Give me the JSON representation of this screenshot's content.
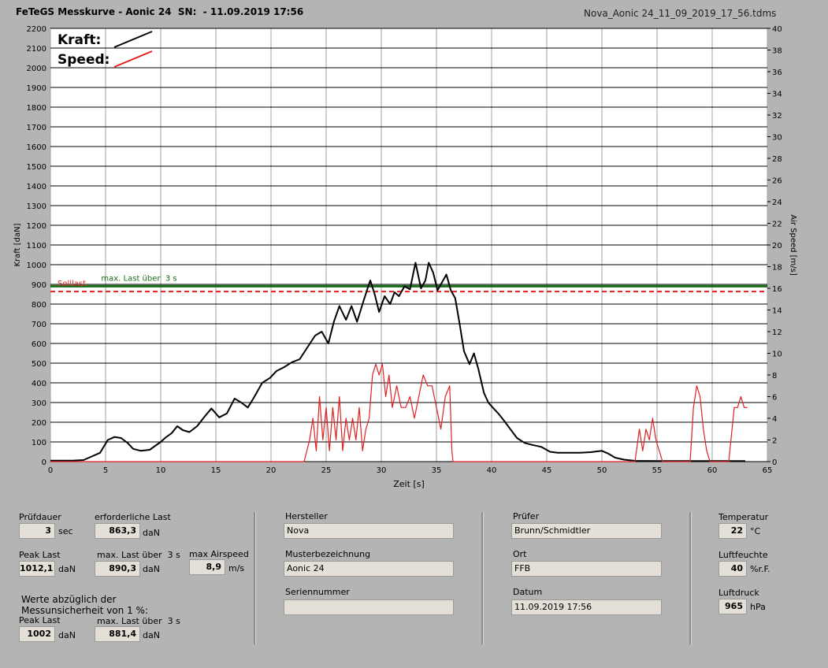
{
  "window": {
    "title": "FeTeGS Messkurve - Aonic 24  SN:  - 11.09.2019 17:56",
    "file": "Nova_Aonic 24_11_09_2019_17_56.tdms"
  },
  "chart_data": {
    "type": "line",
    "xlabel": "Zeit [s]",
    "ylabel_left": "Kraft [daN]",
    "ylabel_right": "Air Speed [m/s]",
    "xlim": [
      0,
      65
    ],
    "ylim_left": [
      0,
      2200
    ],
    "ylim_right": [
      0,
      40
    ],
    "x_ticks": [
      "0",
      "5",
      "10",
      "15",
      "20",
      "25",
      "30",
      "35",
      "40",
      "45",
      "50",
      "55",
      "60",
      "65"
    ],
    "y_ticks_left": [
      "0",
      "100",
      "200",
      "300",
      "400",
      "500",
      "600",
      "700",
      "800",
      "900",
      "1000",
      "1100",
      "1200",
      "1300",
      "1400",
      "1500",
      "1600",
      "1700",
      "1800",
      "1900",
      "2000",
      "2100",
      "2200"
    ],
    "y_ticks_right": [
      "0",
      "2",
      "4",
      "6",
      "8",
      "10",
      "12",
      "14",
      "16",
      "18",
      "20",
      "22",
      "24",
      "26",
      "28",
      "30",
      "32",
      "34",
      "36",
      "38",
      "40"
    ],
    "grid": true,
    "legend": [
      "Kraft:",
      "Speed:"
    ],
    "legend_colors": [
      "#000000",
      "#e02020"
    ],
    "reference_lines": [
      {
        "label": "max. Last über  3 s",
        "value": 890.3,
        "color": "#1a6e1a"
      },
      {
        "label": "Solllast",
        "value": 863.3,
        "color": "#e02020"
      }
    ],
    "series": [
      {
        "name": "Kraft",
        "axis": "left",
        "color": "#000000",
        "x": [
          0,
          2,
          3,
          3.5,
          4.5,
          5.2,
          5.8,
          6.4,
          7,
          7.5,
          8.2,
          9,
          10,
          10.5,
          11,
          11.5,
          12,
          12.6,
          13.3,
          14,
          14.6,
          15.3,
          16,
          16.7,
          17.3,
          17.9,
          18.5,
          19.2,
          19.9,
          20.5,
          21.2,
          21.9,
          22.6,
          23.3,
          24,
          24.6,
          25.2,
          25.7,
          26.2,
          26.8,
          27.3,
          27.8,
          28.3,
          28.7,
          29,
          29.4,
          29.8,
          30.3,
          30.8,
          31.2,
          31.6,
          32.1,
          32.6,
          33.1,
          33.6,
          34,
          34.3,
          34.7,
          35.1,
          35.5,
          35.9,
          36.3,
          36.7,
          37.1,
          37.5,
          38,
          38.4,
          38.8,
          39.3,
          39.7,
          40.1,
          40.6,
          41.1,
          41.7,
          42.3,
          43,
          43.7,
          44.5,
          45.3,
          46,
          47,
          48,
          49,
          50,
          50.6,
          51.2,
          52,
          53,
          55,
          58,
          60,
          61,
          62,
          63
        ],
        "values": [
          5,
          5,
          8,
          20,
          45,
          110,
          125,
          120,
          95,
          65,
          55,
          60,
          100,
          125,
          145,
          180,
          160,
          150,
          180,
          230,
          270,
          225,
          245,
          320,
          300,
          275,
          330,
          400,
          425,
          460,
          480,
          505,
          520,
          580,
          640,
          660,
          600,
          710,
          790,
          720,
          790,
          710,
          800,
          870,
          920,
          850,
          760,
          840,
          800,
          860,
          840,
          890,
          875,
          1010,
          880,
          920,
          1010,
          960,
          870,
          910,
          950,
          870,
          830,
          700,
          560,
          495,
          550,
          470,
          350,
          300,
          275,
          245,
          210,
          165,
          120,
          95,
          85,
          75,
          50,
          45,
          45,
          45,
          48,
          55,
          40,
          20,
          10,
          4,
          3,
          3,
          3,
          3,
          3,
          3
        ]
      },
      {
        "name": "Speed",
        "axis": "right",
        "color": "#e02020",
        "x": [
          0,
          10,
          23,
          23.5,
          23.8,
          24.1,
          24.4,
          24.7,
          25,
          25.3,
          25.6,
          25.9,
          26.2,
          26.5,
          26.8,
          27.1,
          27.4,
          27.7,
          28,
          28.3,
          28.6,
          28.9,
          29.2,
          29.5,
          29.8,
          30.1,
          30.4,
          30.7,
          31,
          31.4,
          31.8,
          32.2,
          32.6,
          33,
          33.4,
          33.8,
          34.2,
          34.6,
          35,
          35.4,
          35.8,
          36.2,
          36.4,
          36.5,
          37,
          40,
          45,
          50,
          53,
          53.4,
          53.7,
          54,
          54.3,
          54.6,
          54.9,
          55.2,
          55.5,
          56,
          57,
          58,
          58.3,
          58.6,
          58.9,
          59.2,
          59.5,
          59.8,
          60,
          60.5,
          61,
          61.5,
          61.8,
          62,
          62.3,
          62.6,
          62.9,
          63.2
        ],
        "values": [
          0,
          0,
          0,
          2,
          4,
          1,
          6,
          2,
          5,
          1,
          5,
          2,
          6,
          1,
          4,
          2,
          4,
          2,
          5,
          1,
          3,
          4,
          8,
          9,
          8,
          9,
          6,
          8,
          5,
          7,
          5,
          5,
          6,
          4,
          6,
          8,
          7,
          7,
          5,
          3,
          6,
          7,
          1,
          0,
          0,
          0,
          0,
          0,
          0,
          3,
          1,
          3,
          2,
          4,
          2,
          1,
          0,
          0,
          0,
          0,
          5,
          7,
          6,
          3,
          1,
          0,
          0,
          0,
          0,
          0,
          3,
          5,
          5,
          6,
          5,
          5
        ]
      }
    ]
  },
  "panel": {
    "pruefdauer": {
      "label": "Prüfdauer",
      "value": "3",
      "unit": "sec"
    },
    "erforderliche_last": {
      "label": "erforderliche Last",
      "value": "863,3",
      "unit": "daN"
    },
    "peak_last": {
      "label": "Peak Last",
      "value": "1012,1",
      "unit": "daN"
    },
    "max_last_3s": {
      "label": "max. Last über  3 s",
      "value": "890,3",
      "unit": "daN"
    },
    "max_airspeed": {
      "label": "max Airspeed",
      "value": "8,9",
      "unit": "m/s"
    },
    "werte_note": "Werte abzüglich der",
    "messunsicherheit_prefix": "Messunsicherheit von",
    "messunsicherheit_value": "1",
    "messunsicherheit_unit": "%:",
    "peak_last_adj": {
      "label": "Peak Last",
      "value": "1002",
      "unit": "daN"
    },
    "max_last_3s_adj": {
      "label": "max. Last über  3 s",
      "value": "881,4",
      "unit": "daN"
    },
    "hersteller": {
      "label": "Hersteller",
      "value": "Nova"
    },
    "musterbezeichnung": {
      "label": "Musterbezeichnung",
      "value": "Aonic 24"
    },
    "seriennummer": {
      "label": "Seriennummer",
      "value": ""
    },
    "pruefer": {
      "label": "Prüfer",
      "value": "Brunn/Schmidtler"
    },
    "ort": {
      "label": "Ort",
      "value": "FFB"
    },
    "datum": {
      "label": "Datum",
      "value": "11.09.2019 17:56"
    },
    "temperatur": {
      "label": "Temperatur",
      "value": "22",
      "unit": "°C"
    },
    "luftfeuchte": {
      "label": "Luftfeuchte",
      "value": "40",
      "unit": "%r.F."
    },
    "luftdruck": {
      "label": "Luftdruck",
      "value": "965",
      "unit": "hPa"
    }
  }
}
